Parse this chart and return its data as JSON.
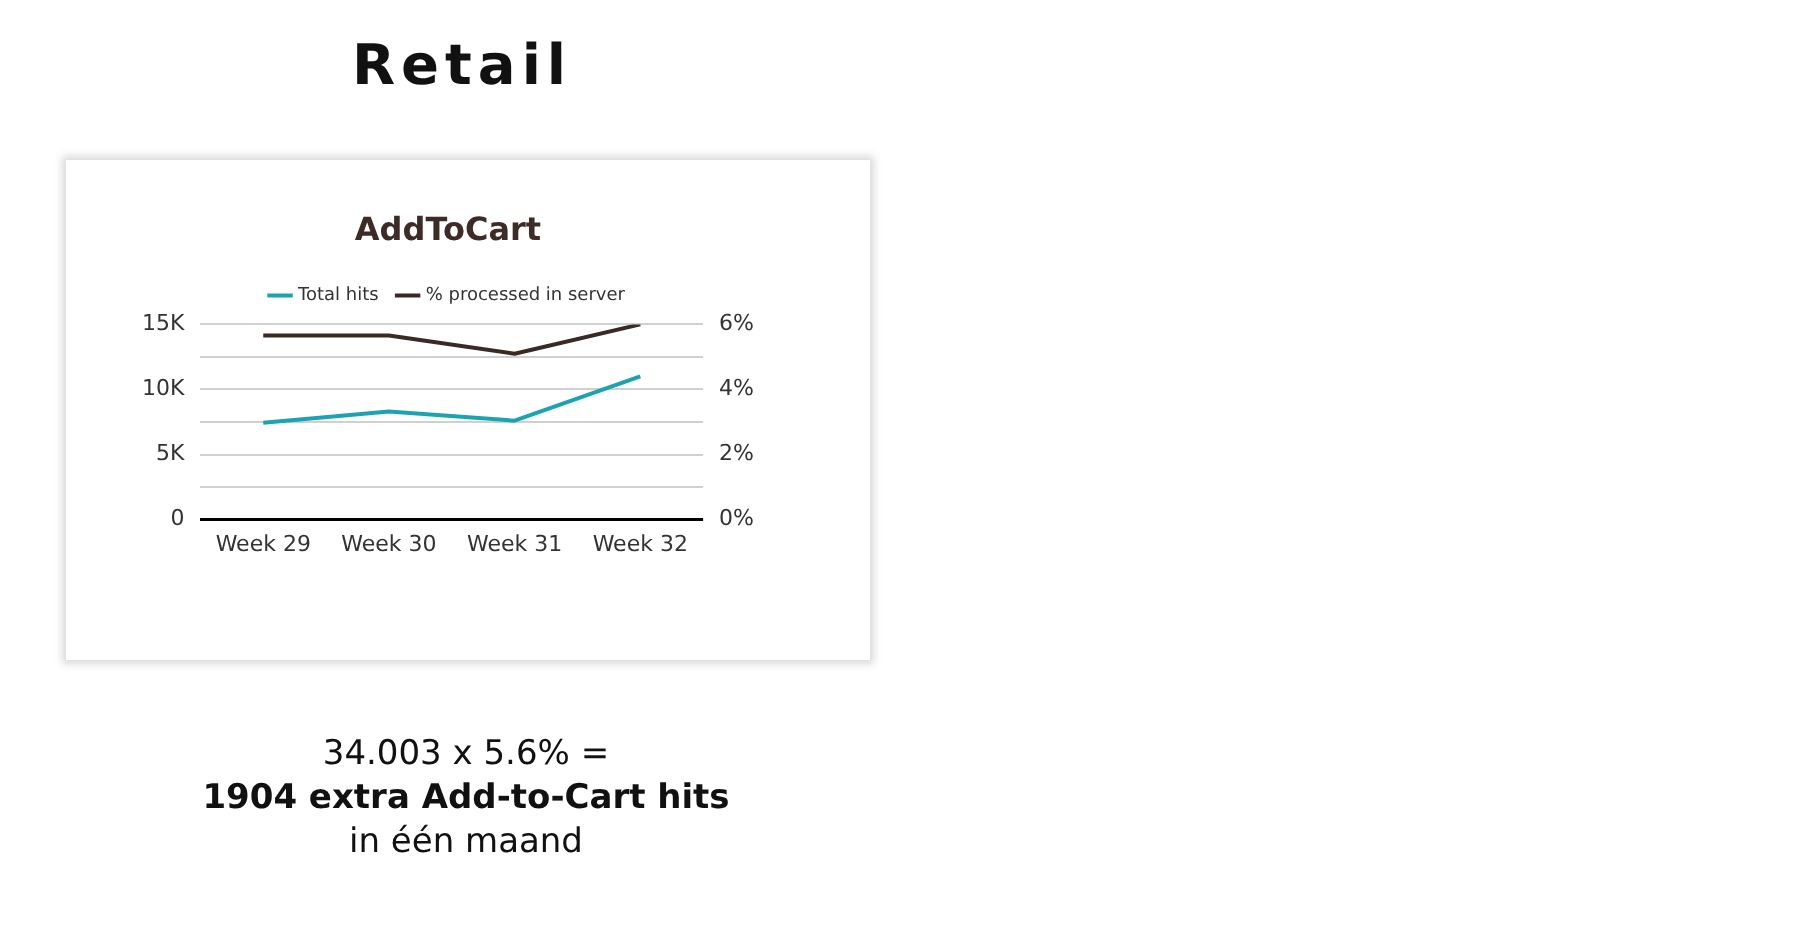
{
  "chart_data": {
    "type": "line",
    "title": "Retail",
    "subtitle": "AddToCart",
    "categories": [
      "Week 29",
      "Week 30",
      "Week 31",
      "Week 32"
    ],
    "series": [
      {
        "name": "Total hits",
        "color": "#1ba3b4",
        "values": [
          7450,
          8300,
          7600,
          11000
        ]
      },
      {
        "name": "% processed in server",
        "color": "#3a2a25",
        "values": [
          5.66,
          5.66,
          5.1,
          6.0
        ],
        "axis": "y2"
      }
    ],
    "ylim": [
      0,
      15000
    ],
    "yticks": [
      {
        "value": 0,
        "label": "0"
      },
      {
        "value": 2500,
        "label": null
      },
      {
        "value": 5000,
        "label": "5K"
      },
      {
        "value": 7500,
        "label": null
      },
      {
        "value": 10000,
        "label": "10K"
      },
      {
        "value": 12500,
        "label": null
      },
      {
        "value": 15000,
        "label": "15K"
      }
    ],
    "y2lim": [
      0,
      6
    ],
    "y2ticks": [
      {
        "value": 0,
        "label": "0%"
      },
      {
        "value": 2,
        "label": "2%"
      },
      {
        "value": 4,
        "label": "4%"
      },
      {
        "value": 6,
        "label": "6%"
      }
    ],
    "grid": "y",
    "legend": "top",
    "marker": "none",
    "annotations": [
      "34.003 x 5.6% =",
      "1904 extra Add-to-Cart hits",
      "in één maand"
    ]
  }
}
